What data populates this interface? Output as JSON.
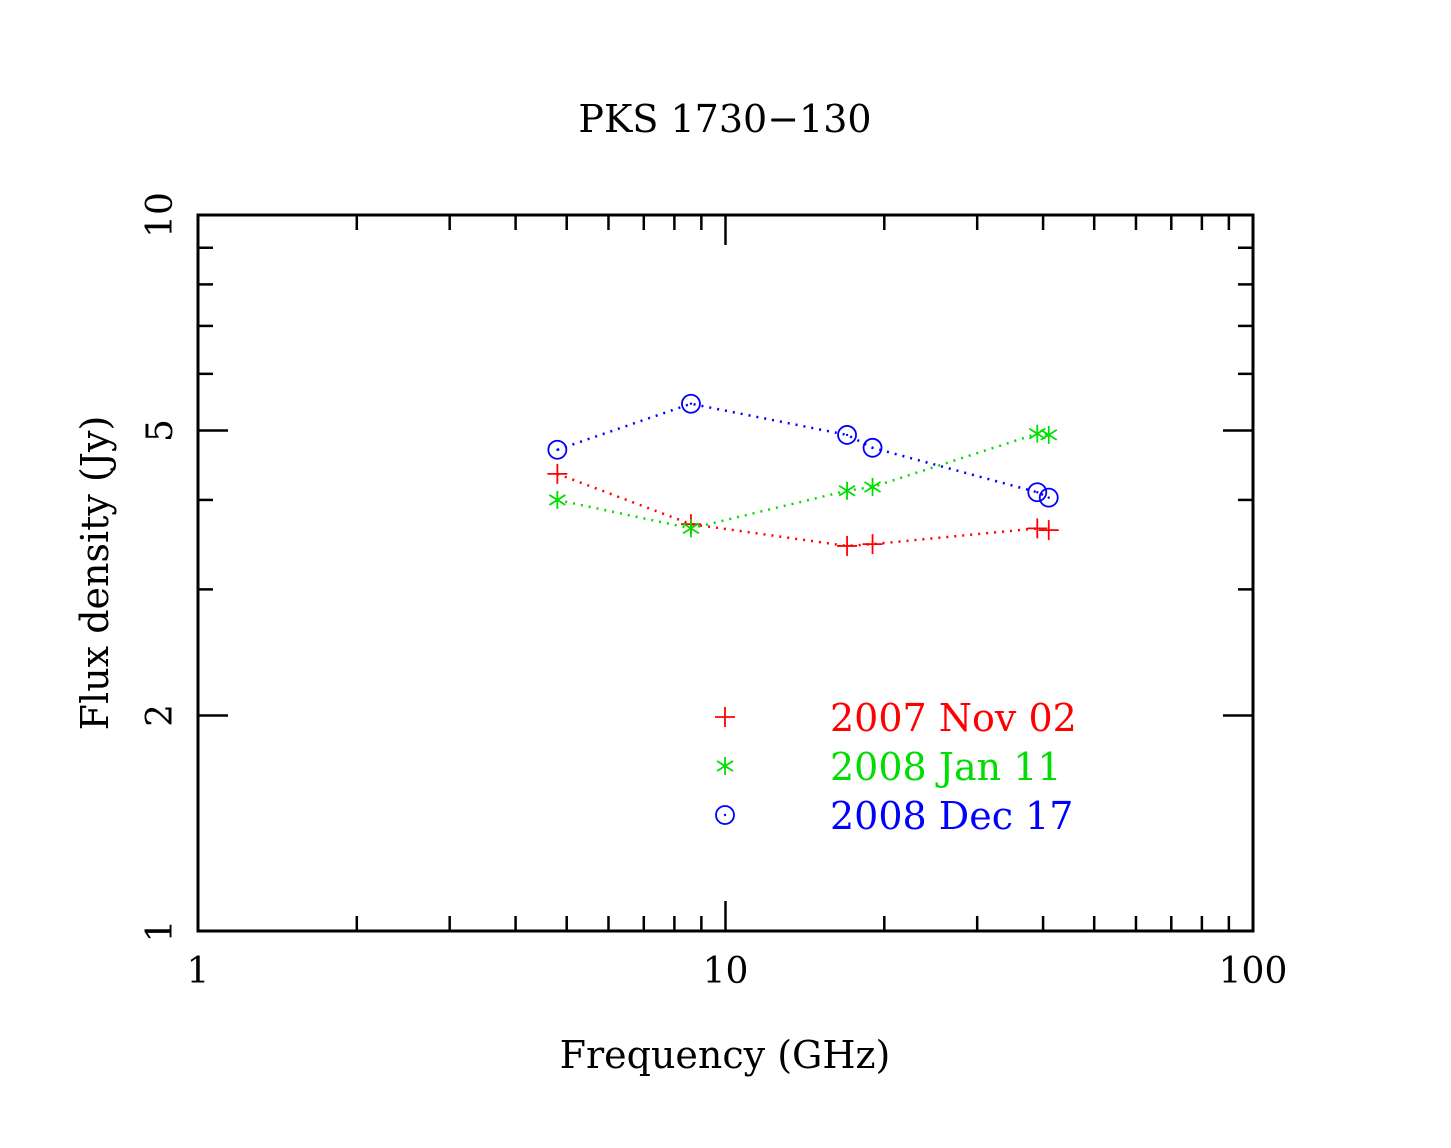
{
  "chart_data": {
    "type": "scatter",
    "title": "PKS 1730−130",
    "xlabel": "Frequency (GHz)",
    "ylabel": "Flux density (Jy)",
    "x_scale": "log",
    "y_scale": "log",
    "xlim": [
      1,
      100
    ],
    "ylim": [
      1,
      10
    ],
    "x_tick_labels": [
      {
        "value": 1,
        "label": "1"
      },
      {
        "value": 10,
        "label": "10"
      },
      {
        "value": 100,
        "label": "100"
      }
    ],
    "y_tick_labels": [
      {
        "value": 1,
        "label": "1"
      },
      {
        "value": 2,
        "label": "2"
      },
      {
        "value": 5,
        "label": "5"
      },
      {
        "value": 10,
        "label": "10"
      }
    ],
    "grid": false,
    "legend_position": "bottom-right",
    "series": [
      {
        "name": "2007 Nov 02",
        "color": "#ff0000",
        "marker": "plus",
        "line_style": "dotted",
        "x": [
          4.8,
          8.6,
          17,
          19,
          39,
          41
        ],
        "y": [
          4.35,
          3.7,
          3.45,
          3.47,
          3.65,
          3.63
        ]
      },
      {
        "name": "2008 Jan 11",
        "color": "#00dd00",
        "marker": "asterisk",
        "line_style": "dotted",
        "x": [
          4.8,
          8.6,
          17,
          19,
          39,
          41
        ],
        "y": [
          4.0,
          3.65,
          4.12,
          4.17,
          4.95,
          4.93
        ]
      },
      {
        "name": "2008 Dec 17",
        "color": "#0000ff",
        "marker": "circle",
        "line_style": "dotted",
        "x": [
          4.8,
          8.6,
          17,
          19,
          39,
          41
        ],
        "y": [
          4.7,
          5.45,
          4.93,
          4.73,
          4.1,
          4.03
        ]
      }
    ]
  }
}
